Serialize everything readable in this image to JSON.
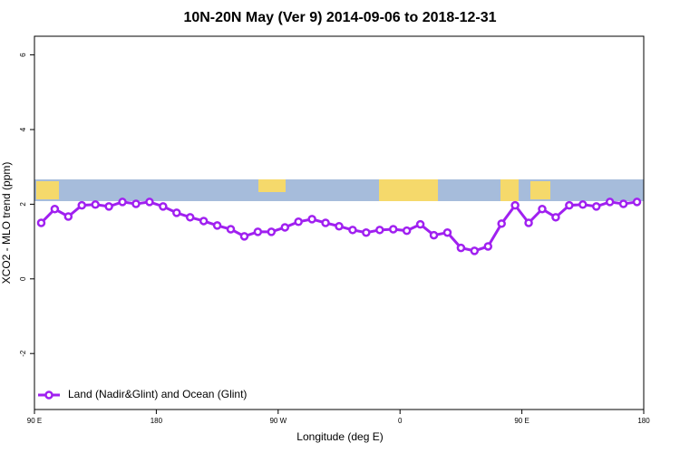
{
  "chart_data": {
    "type": "line",
    "title": "10N-20N May (Ver 9)   2014-09-06 to 2018-12-31",
    "xlabel": "Longitude (deg E)",
    "ylabel": "XCO2 - MLO trend (ppm)",
    "xlim": [
      90,
      540
    ],
    "ylim": [
      -3.5,
      6.5
    ],
    "xticks": [
      {
        "value": 90,
        "label": "90 E"
      },
      {
        "value": 180,
        "label": "180"
      },
      {
        "value": 270,
        "label": "90 W"
      },
      {
        "value": 360,
        "label": "0"
      },
      {
        "value": 450,
        "label": "90 E"
      },
      {
        "value": 540,
        "label": "180"
      }
    ],
    "yticks": [
      -2,
      0,
      2,
      4,
      6
    ],
    "legend": "bottom-left",
    "x": [
      95,
      105,
      115,
      125,
      135,
      145,
      155,
      165,
      175,
      185,
      195,
      205,
      215,
      225,
      235,
      245,
      255,
      265,
      275,
      285,
      295,
      305,
      315,
      325,
      335,
      345,
      355,
      365,
      375,
      385,
      395,
      405,
      415,
      425,
      435,
      445,
      455,
      465,
      475,
      485,
      495,
      505,
      515,
      525,
      535
    ],
    "series": [
      {
        "name": "Land (Nadir&Glint) and Ocean (Glint)",
        "color": "#a020f0",
        "values": [
          1.5,
          1.87,
          1.67,
          1.97,
          1.99,
          1.94,
          2.06,
          2.01,
          2.06,
          1.94,
          1.77,
          1.65,
          1.55,
          1.43,
          1.33,
          1.14,
          1.26,
          1.26,
          1.38,
          1.53,
          1.6,
          1.5,
          1.41,
          1.31,
          1.24,
          1.31,
          1.33,
          1.29,
          1.46,
          1.17,
          1.24,
          0.83,
          0.75,
          0.87,
          1.48,
          1.97,
          1.5,
          1.87,
          1.65,
          1.97,
          1.99,
          1.94,
          2.06,
          2.01,
          2.06
        ]
      }
    ]
  }
}
